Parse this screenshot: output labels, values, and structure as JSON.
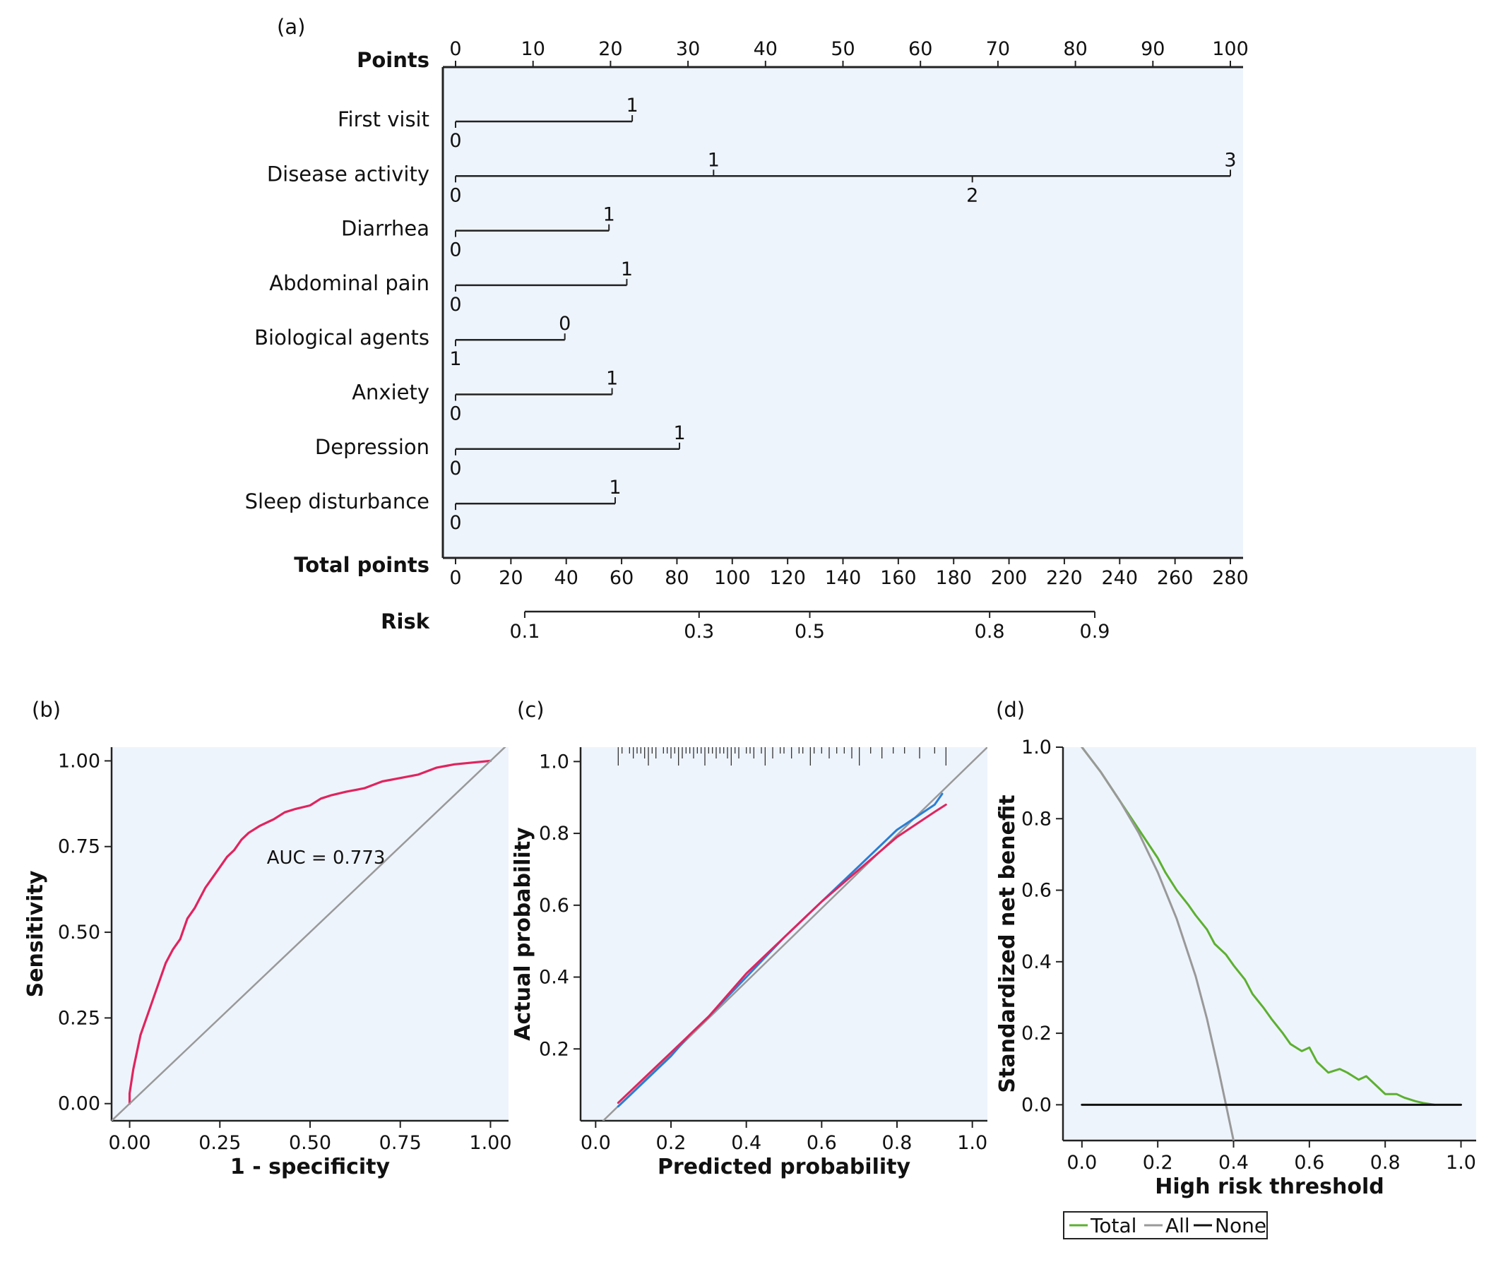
{
  "chart_data": [
    {
      "panel_label": "(a)",
      "type": "nomogram",
      "points_label": "Points",
      "points_range": [
        0,
        100
      ],
      "points_ticks": [
        0,
        10,
        20,
        30,
        40,
        50,
        60,
        70,
        80,
        90,
        100
      ],
      "variables": [
        {
          "name": "First visit",
          "levels": [
            {
              "label": "0",
              "points": 0
            },
            {
              "label": "1",
              "points": 22.8
            }
          ]
        },
        {
          "name": "Disease activity",
          "levels": [
            {
              "label": "0",
              "points": 0
            },
            {
              "label": "1",
              "points": 33.3
            },
            {
              "label": "2",
              "points": 66.7
            },
            {
              "label": "3",
              "points": 100
            }
          ]
        },
        {
          "name": "Diarrhea",
          "levels": [
            {
              "label": "0",
              "points": 0
            },
            {
              "label": "1",
              "points": 19.8
            }
          ]
        },
        {
          "name": "Abdominal pain",
          "levels": [
            {
              "label": "0",
              "points": 0
            },
            {
              "label": "1",
              "points": 22.1
            }
          ]
        },
        {
          "name": "Biological agents",
          "levels": [
            {
              "label": "0",
              "points": 14.1
            },
            {
              "label": "1",
              "points": 0
            }
          ]
        },
        {
          "name": "Anxiety",
          "levels": [
            {
              "label": "0",
              "points": 0
            },
            {
              "label": "1",
              "points": 20.2
            }
          ]
        },
        {
          "name": "Depression",
          "levels": [
            {
              "label": "0",
              "points": 0
            },
            {
              "label": "1",
              "points": 28.9
            }
          ]
        },
        {
          "name": "Sleep disturbance",
          "levels": [
            {
              "label": "0",
              "points": 0
            },
            {
              "label": "1",
              "points": 20.6
            }
          ]
        }
      ],
      "total_points_label": "Total points",
      "total_points_range": [
        0,
        280
      ],
      "total_points_ticks": [
        0,
        20,
        40,
        60,
        80,
        100,
        120,
        140,
        160,
        180,
        200,
        220,
        240,
        260,
        280
      ],
      "risk_label": "Risk",
      "risk_ticks": [
        {
          "label": "0.1",
          "total_points": 25
        },
        {
          "label": "0.3",
          "total_points": 88
        },
        {
          "label": "0.5",
          "total_points": 128
        },
        {
          "label": "0.8",
          "total_points": 193
        },
        {
          "label": "0.9",
          "total_points": 231
        }
      ],
      "colors": {
        "background": "#eef4fc",
        "line": "#222222"
      }
    },
    {
      "panel_label": "(b)",
      "type": "line",
      "xlabel": "1 - specificity",
      "ylabel": "Sensitivity",
      "xlim": [
        -0.05,
        1.05
      ],
      "ylim": [
        -0.05,
        1.04
      ],
      "xticks": [
        "0.00",
        "0.25",
        "0.50",
        "0.75",
        "1.00"
      ],
      "yticks": [
        "0.00",
        "0.25",
        "0.50",
        "0.75",
        "1.00"
      ],
      "annotation": "AUC = 0.773",
      "annotation_at": [
        0.38,
        0.7
      ],
      "series": [
        {
          "color": "#e0245e",
          "x": [
            0,
            0,
            0.01,
            0.02,
            0.03,
            0.04,
            0.05,
            0.06,
            0.07,
            0.08,
            0.09,
            0.1,
            0.12,
            0.14,
            0.15,
            0.16,
            0.18,
            0.2,
            0.21,
            0.23,
            0.25,
            0.27,
            0.29,
            0.31,
            0.33,
            0.36,
            0.4,
            0.43,
            0.46,
            0.5,
            0.53,
            0.56,
            0.6,
            0.65,
            0.7,
            0.75,
            0.8,
            0.85,
            0.9,
            0.95,
            1.0
          ],
          "y": [
            0,
            0.03,
            0.1,
            0.15,
            0.2,
            0.23,
            0.26,
            0.29,
            0.32,
            0.35,
            0.38,
            0.41,
            0.45,
            0.48,
            0.51,
            0.54,
            0.57,
            0.61,
            0.63,
            0.66,
            0.69,
            0.72,
            0.74,
            0.77,
            0.79,
            0.81,
            0.83,
            0.85,
            0.86,
            0.87,
            0.89,
            0.9,
            0.91,
            0.92,
            0.94,
            0.95,
            0.96,
            0.98,
            0.99,
            0.995,
            1.0
          ]
        },
        {
          "color": "#999999",
          "x": [
            -0.05,
            1.05
          ],
          "y": [
            -0.05,
            1.05
          ]
        }
      ],
      "grid": false
    },
    {
      "panel_label": "(c)",
      "type": "line",
      "xlabel": "Predicted probability",
      "ylabel": "Actual probability",
      "xlim": [
        -0.04,
        1.04
      ],
      "ylim": [
        0.0,
        1.04
      ],
      "xticks": [
        "0.0",
        "0.2",
        "0.4",
        "0.6",
        "0.8",
        "1.0"
      ],
      "yticks": [
        "0.2",
        "0.4",
        "0.6",
        "0.8",
        "1.0"
      ],
      "series": [
        {
          "color": "#999999",
          "x": [
            0.02,
            1.04
          ],
          "y": [
            0.0,
            1.04
          ]
        },
        {
          "color": "#2a7fd4",
          "x": [
            0.06,
            0.1,
            0.15,
            0.2,
            0.25,
            0.3,
            0.4,
            0.5,
            0.6,
            0.7,
            0.8,
            0.9,
            0.92
          ],
          "y": [
            0.04,
            0.08,
            0.13,
            0.18,
            0.24,
            0.29,
            0.4,
            0.51,
            0.61,
            0.71,
            0.81,
            0.88,
            0.91
          ]
        },
        {
          "color": "#e0245e",
          "x": [
            0.06,
            0.1,
            0.15,
            0.2,
            0.25,
            0.3,
            0.35,
            0.4,
            0.45,
            0.5,
            0.6,
            0.7,
            0.8,
            0.9,
            0.93
          ],
          "y": [
            0.05,
            0.09,
            0.14,
            0.19,
            0.24,
            0.29,
            0.35,
            0.41,
            0.46,
            0.51,
            0.61,
            0.7,
            0.79,
            0.86,
            0.88
          ]
        }
      ],
      "rug_positions": [
        0.06,
        0.07,
        0.09,
        0.1,
        0.11,
        0.12,
        0.13,
        0.14,
        0.15,
        0.16,
        0.18,
        0.19,
        0.2,
        0.21,
        0.22,
        0.23,
        0.24,
        0.25,
        0.26,
        0.27,
        0.28,
        0.29,
        0.3,
        0.31,
        0.32,
        0.33,
        0.34,
        0.35,
        0.36,
        0.37,
        0.38,
        0.4,
        0.41,
        0.42,
        0.44,
        0.45,
        0.47,
        0.49,
        0.5,
        0.52,
        0.54,
        0.55,
        0.57,
        0.58,
        0.6,
        0.62,
        0.64,
        0.66,
        0.68,
        0.7,
        0.73,
        0.76,
        0.79,
        0.82,
        0.86,
        0.9,
        0.93
      ],
      "grid": false
    },
    {
      "panel_label": "(d)",
      "type": "line",
      "xlabel": "High risk threshold",
      "ylabel": "Standardized net benefit",
      "xlim": [
        -0.05,
        1.04
      ],
      "ylim": [
        -0.1,
        1.0
      ],
      "xticks": [
        "0.0",
        "0.2",
        "0.4",
        "0.6",
        "0.8",
        "1.0"
      ],
      "yticks": [
        "0.0",
        "0.2",
        "0.4",
        "0.6",
        "0.8",
        "1.0"
      ],
      "legend": {
        "placement": "bottom",
        "items": [
          "Total",
          "All",
          "None"
        ]
      },
      "series": [
        {
          "name": "Total",
          "color": "#5cb030",
          "x": [
            0,
            0.05,
            0.1,
            0.15,
            0.2,
            0.22,
            0.25,
            0.28,
            0.3,
            0.33,
            0.35,
            0.38,
            0.4,
            0.43,
            0.45,
            0.48,
            0.5,
            0.53,
            0.55,
            0.58,
            0.6,
            0.62,
            0.65,
            0.68,
            0.7,
            0.73,
            0.75,
            0.78,
            0.8,
            0.83,
            0.85,
            0.88,
            0.9,
            0.93
          ],
          "y": [
            1.0,
            0.93,
            0.85,
            0.77,
            0.69,
            0.65,
            0.6,
            0.56,
            0.53,
            0.49,
            0.45,
            0.42,
            0.39,
            0.35,
            0.31,
            0.27,
            0.24,
            0.2,
            0.17,
            0.15,
            0.16,
            0.12,
            0.09,
            0.1,
            0.09,
            0.07,
            0.08,
            0.05,
            0.03,
            0.03,
            0.02,
            0.01,
            0.005,
            0.0
          ]
        },
        {
          "name": "All",
          "color": "#999999",
          "x": [
            0,
            0.05,
            0.1,
            0.15,
            0.2,
            0.25,
            0.3,
            0.33,
            0.36,
            0.38,
            0.4
          ],
          "y": [
            1.0,
            0.93,
            0.85,
            0.76,
            0.65,
            0.52,
            0.36,
            0.24,
            0.1,
            0.0,
            -0.1
          ]
        },
        {
          "name": "None",
          "color": "#111111",
          "x": [
            0,
            1.0
          ],
          "y": [
            0,
            0
          ]
        }
      ],
      "grid": false
    }
  ]
}
